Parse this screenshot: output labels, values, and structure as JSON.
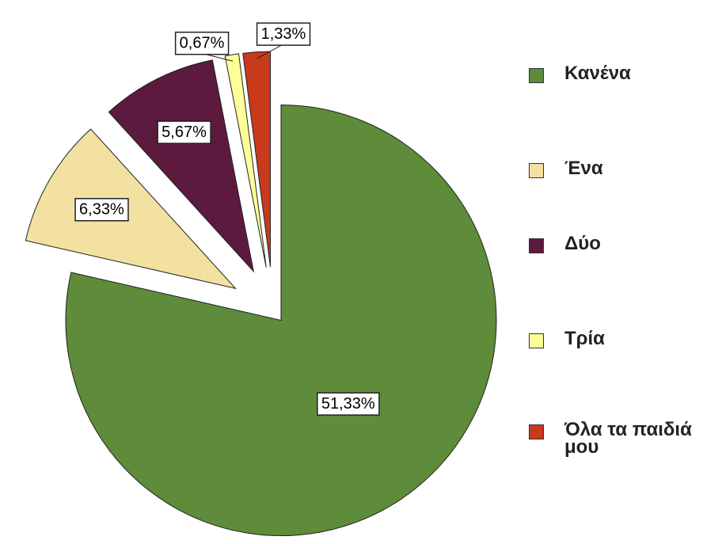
{
  "chart_data": {
    "type": "pie",
    "categories": [
      "Κανένα",
      "Ένα",
      "Δύο",
      "Τρία",
      "Όλα τα παιδιά μου"
    ],
    "values": [
      51.33,
      6.33,
      5.67,
      0.67,
      1.33
    ],
    "value_labels": [
      "51,33%",
      "6,33%",
      "5,67%",
      "0,67%",
      "1,33%"
    ],
    "colors": [
      "#5e8c3a",
      "#f2e1a0",
      "#5b1a3e",
      "#ffff99",
      "#c83a1c"
    ],
    "legend": "right"
  }
}
